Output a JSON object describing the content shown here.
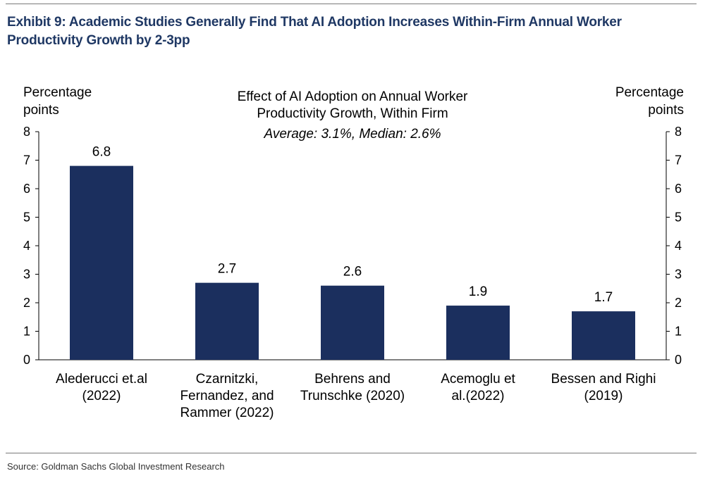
{
  "exhibit": {
    "title_line1": "Exhibit 9: Academic Studies Generally Find That AI Adoption Increases Within-Firm Annual Worker",
    "title_line2": "Productivity Growth by 2-3pp"
  },
  "source": "Source: Goldman Sachs Global Investment Research",
  "colors": {
    "bar": "#1b2f5e",
    "title": "#1f3864",
    "axis": "#000000"
  },
  "chart_data": {
    "type": "bar",
    "title_lines": [
      "Effect of AI Adoption on Annual Worker",
      "Productivity Growth, Within Firm"
    ],
    "subtitle": "Average: 3.1%, Median: 2.6%",
    "ylabel_left": [
      "Percentage",
      "points"
    ],
    "ylabel_right": [
      "Percentage",
      "points"
    ],
    "ylim": [
      0,
      8
    ],
    "yticks": [
      0,
      1,
      2,
      3,
      4,
      5,
      6,
      7,
      8
    ],
    "categories": [
      [
        "Alederucci et.al",
        "(2022)"
      ],
      [
        "Czarnitzki,",
        "Fernandez, and",
        "Rammer (2022)"
      ],
      [
        "Behrens and",
        "Trunschke (2020)"
      ],
      [
        "Acemoglu et",
        "al.(2022)"
      ],
      [
        "Bessen and Righi",
        "(2019)"
      ]
    ],
    "values": [
      6.8,
      2.7,
      2.6,
      1.9,
      1.7
    ],
    "value_labels": [
      "6.8",
      "2.7",
      "2.6",
      "1.9",
      "1.7"
    ]
  }
}
